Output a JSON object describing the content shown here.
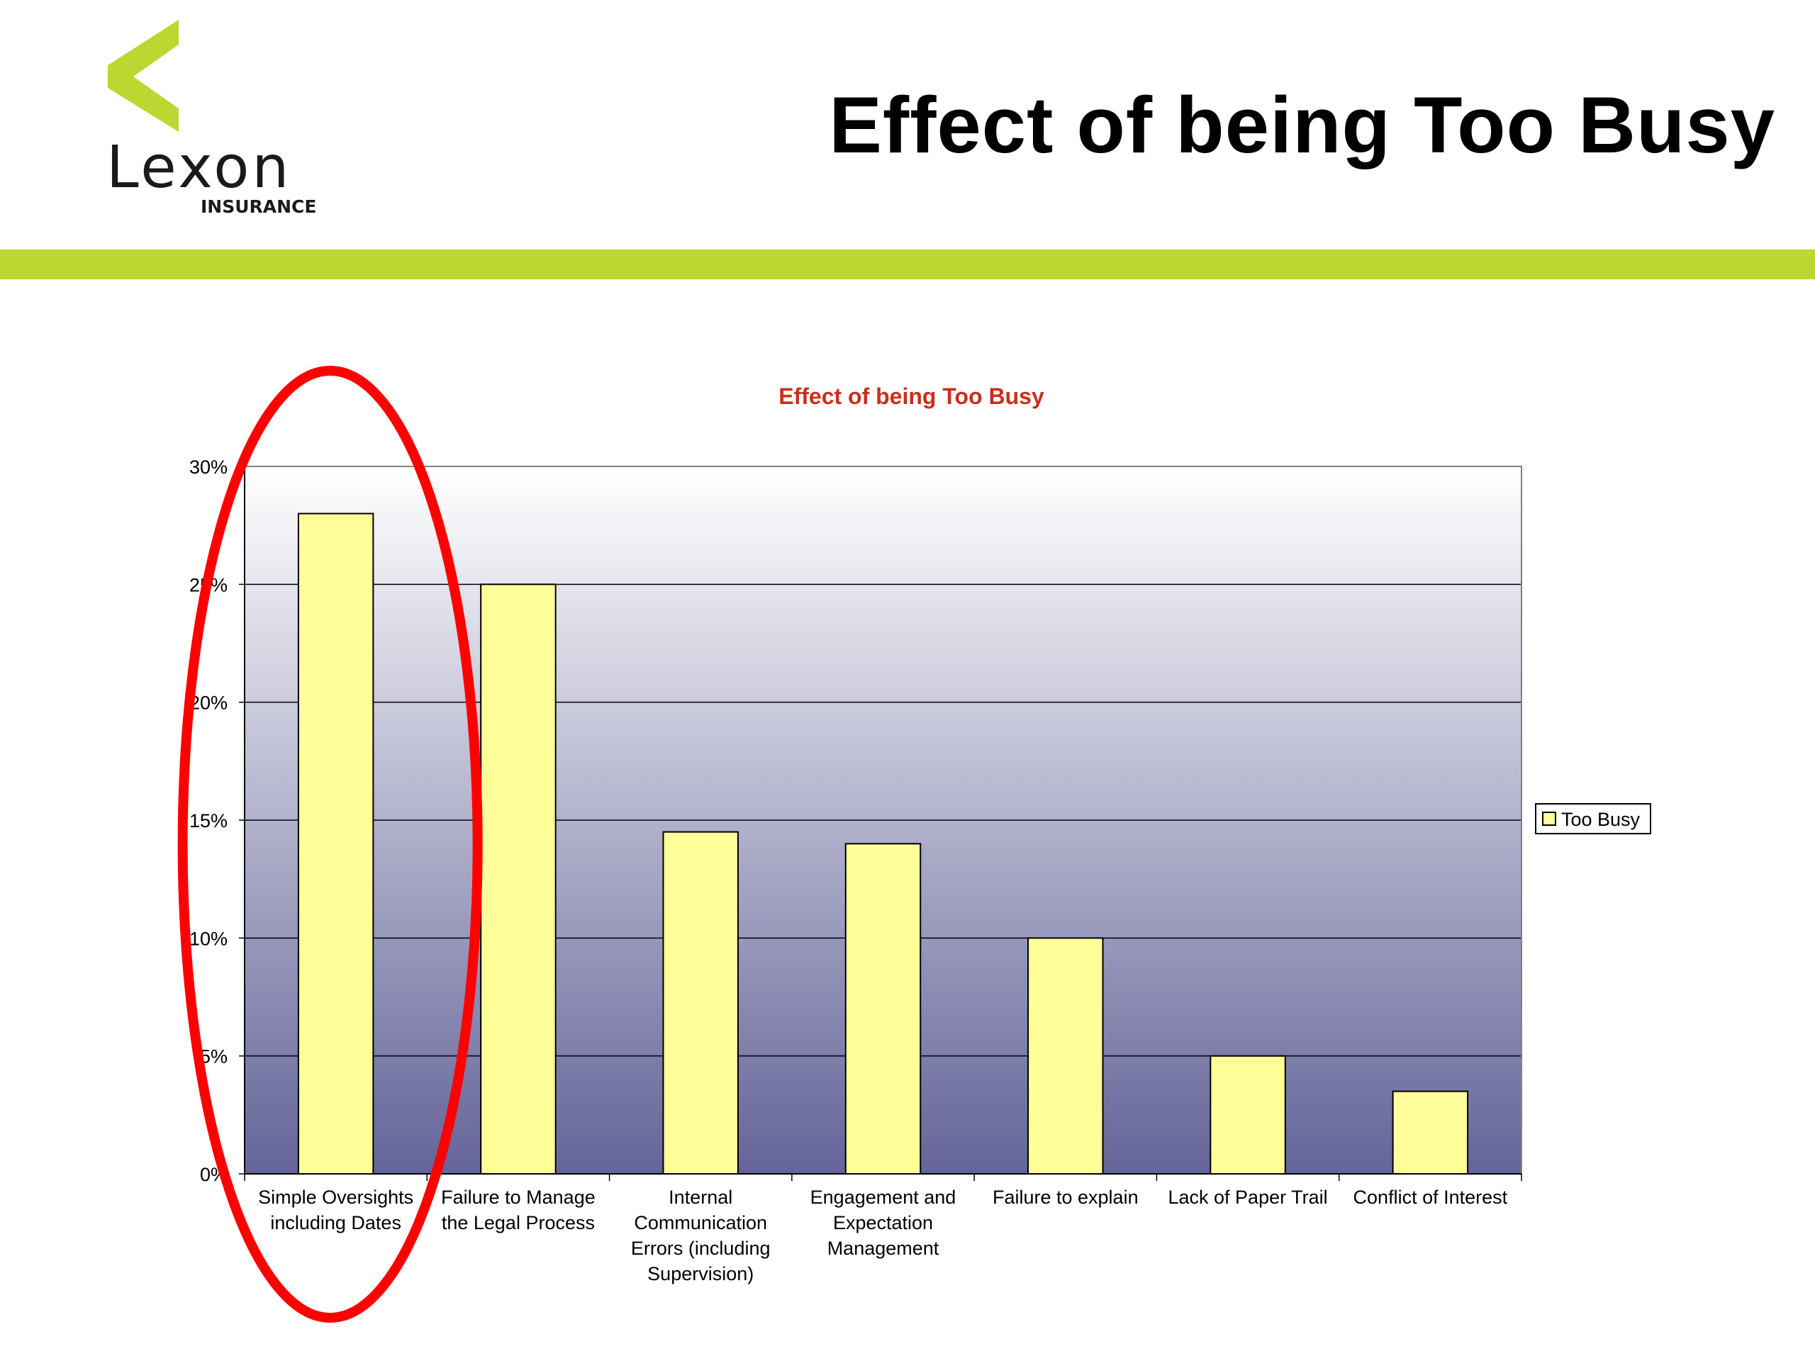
{
  "brand": {
    "name": "Lexon",
    "subname": "INSURANCE",
    "logo_icon": "chevron-logo-icon",
    "accent_color": "#BDD631",
    "logo_text_color": "#1A1A1A"
  },
  "slide": {
    "title": "Effect of being Too Busy"
  },
  "chart_data": {
    "type": "bar",
    "title": "Effect of being Too Busy",
    "title_color": "#C8301A",
    "xlabel": "",
    "ylabel": "",
    "categories": [
      [
        "Simple Oversights",
        "including Dates"
      ],
      [
        "Failure to Manage",
        "the Legal Process"
      ],
      [
        "Internal",
        "Communication",
        "Errors (including",
        "Supervision)"
      ],
      [
        "Engagement and",
        "Expectation",
        "Management"
      ],
      [
        "Failure to explain"
      ],
      [
        "Lack of Paper Trail"
      ],
      [
        "Conflict of Interest"
      ]
    ],
    "series": [
      {
        "name": "Too Busy",
        "values": [
          0.28,
          0.25,
          0.145,
          0.14,
          0.1,
          0.05,
          0.035
        ],
        "color": "#FFFF99"
      }
    ],
    "ylim": [
      0,
      0.3
    ],
    "yticks": [
      {
        "value": 0,
        "label": "0%"
      },
      {
        "value": 0.05,
        "label": "5%"
      },
      {
        "value": 0.1,
        "label": "10%"
      },
      {
        "value": 0.15,
        "label": "15%"
      },
      {
        "value": 0.2,
        "label": "20%"
      },
      {
        "value": 0.25,
        "label": "25%"
      },
      {
        "value": 0.3,
        "label": "30%"
      }
    ],
    "grid": true,
    "legend": "right",
    "background_gradient": [
      "#FFFFFF",
      "#646499"
    ],
    "highlight": {
      "category_index": 0,
      "shape": "ellipse",
      "color": "#FF0000"
    }
  }
}
